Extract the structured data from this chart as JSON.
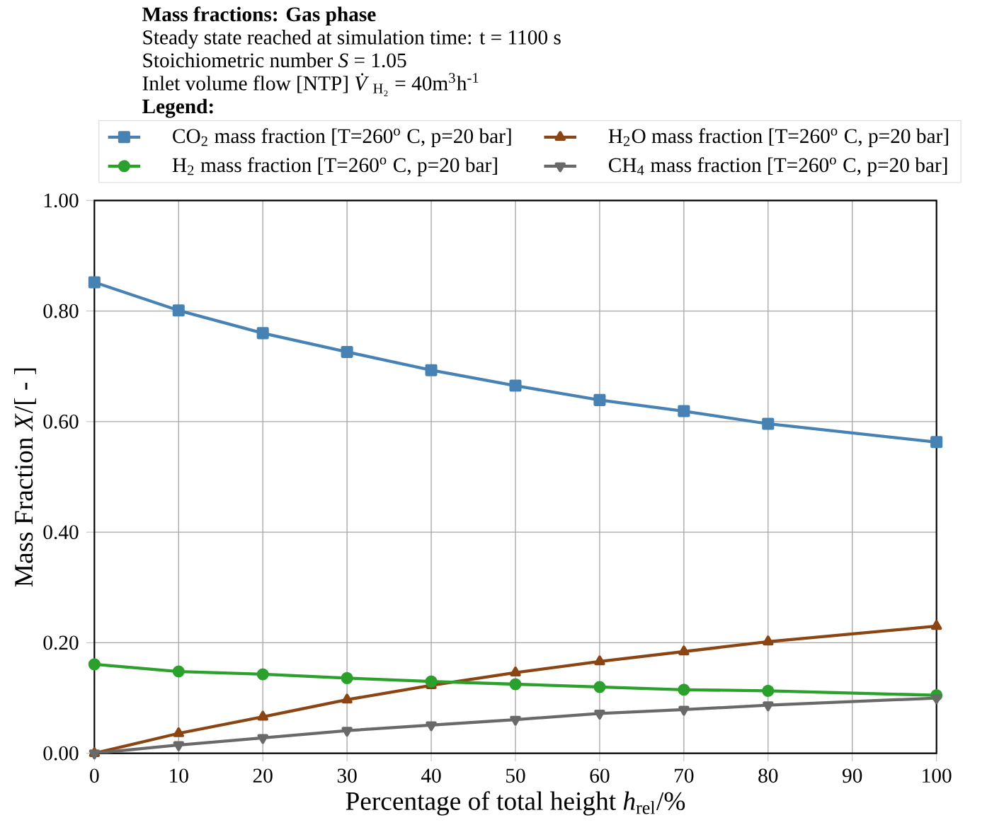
{
  "chart_data": {
    "type": "line",
    "title": "Mass fractions: Gas phase",
    "annotations": [
      "Steady state reached at simulation time: t = 1100 s",
      "Stoichiometric number *S* = 1.05",
      "Inlet volume flow [NTP] *V̇*$_{H₂}$ = 40m$^{3}$h$^{-1}$"
    ],
    "legend_title": "Legend:",
    "xlabel": "Percentage of total height *h*$_{rel}$/%",
    "ylabel": "Mass Fraction *X*/[ - ]",
    "x": [
      0,
      10,
      20,
      30,
      40,
      50,
      60,
      70,
      80,
      100
    ],
    "series": [
      {
        "name": "CO$_{2}$ mass fraction [T=260$^{o}$ C, p=20 bar]",
        "color": "#4682b4",
        "marker": "square",
        "values": [
          0.852,
          0.801,
          0.76,
          0.726,
          0.693,
          0.665,
          0.639,
          0.619,
          0.596,
          0.563
        ]
      },
      {
        "name": "H$_{2}$O mass fraction [T=260$^{o}$ C, p=20 bar]",
        "color": "#8b4513",
        "marker": "triangle",
        "values": [
          0.0,
          0.036,
          0.066,
          0.097,
          0.123,
          0.146,
          0.166,
          0.184,
          0.202,
          0.23
        ]
      },
      {
        "name": "H$_{2}$ mass fraction [T=260$^{o}$ C, p=20 bar]",
        "color": "#2ca02c",
        "marker": "circle",
        "values": [
          0.161,
          0.148,
          0.143,
          0.136,
          0.13,
          0.125,
          0.12,
          0.115,
          0.113,
          0.105
        ]
      },
      {
        "name": "CH$_{4}$ mass fraction [T=260$^{o}$ C, p=20 bar]",
        "color": "#696969",
        "marker": "triangle_down",
        "values": [
          0.0,
          0.015,
          0.028,
          0.041,
          0.051,
          0.061,
          0.072,
          0.079,
          0.087,
          0.1
        ]
      }
    ],
    "xlim": [
      0,
      100
    ],
    "xticks": [
      0,
      10,
      20,
      30,
      40,
      50,
      60,
      70,
      80,
      90,
      100
    ],
    "ylim": [
      0,
      1
    ],
    "yticks": [
      {
        "value": 0,
        "label": "0.00"
      },
      {
        "value": 0.2,
        "label": "0.20"
      },
      {
        "value": 0.4,
        "label": "0.40"
      },
      {
        "value": 0.6,
        "label": "0.60"
      },
      {
        "value": 0.8,
        "label": "0.80"
      },
      {
        "value": 1,
        "label": "1.00"
      }
    ],
    "grid": true,
    "legend": "top",
    "line_style": "solid"
  }
}
